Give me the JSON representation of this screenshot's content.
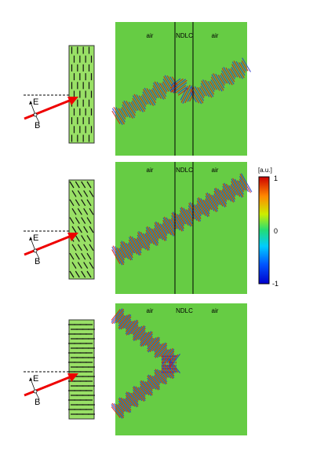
{
  "rows": [
    {
      "id": "top",
      "orientation": "vertical",
      "field_labels": {
        "left": "air",
        "middle": "NDLC",
        "right": "air"
      },
      "source_labels": {
        "e": "E",
        "b": "B"
      }
    },
    {
      "id": "middle",
      "orientation": "tilted",
      "field_labels": {
        "left": "air",
        "middle": "NDLC",
        "right": "air"
      },
      "source_labels": {
        "e": "E",
        "b": "B"
      }
    },
    {
      "id": "bottom",
      "orientation": "horizontal",
      "field_labels": {
        "left": "air",
        "middle": "NDLC",
        "right": "air"
      },
      "source_labels": {
        "e": "E",
        "b": "B"
      }
    }
  ],
  "colorbar": {
    "unit": "[a.u.]",
    "max_label": "1",
    "mid_label": "0",
    "min_label": "-1"
  },
  "colors": {
    "field_background": "#66cc44",
    "cell_fill": "#99e066",
    "arrow": "#ee0000",
    "wave_red": "#cc1111",
    "wave_blue": "#2233cc"
  }
}
